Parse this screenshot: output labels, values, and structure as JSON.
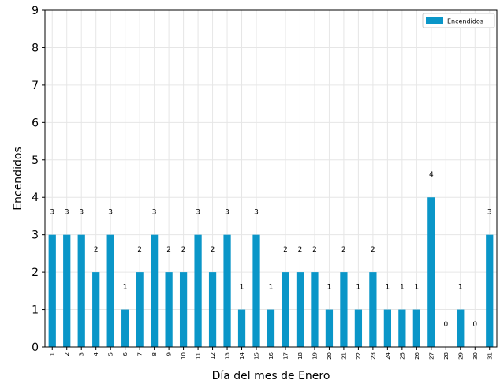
{
  "chart_data": {
    "type": "bar",
    "xlabel": "Día del mes de Enero",
    "ylabel": "Encendidos",
    "ylim": [
      0,
      9
    ],
    "yticks": [
      0,
      1,
      2,
      3,
      4,
      5,
      6,
      7,
      8,
      9
    ],
    "grid": true,
    "legend_position": "top-right",
    "categories": [
      "1",
      "2",
      "3",
      "4",
      "5",
      "6",
      "7",
      "8",
      "9",
      "10",
      "11",
      "12",
      "13",
      "14",
      "15",
      "16",
      "17",
      "18",
      "19",
      "20",
      "21",
      "22",
      "23",
      "24",
      "25",
      "26",
      "27",
      "28",
      "29",
      "30",
      "31"
    ],
    "series": [
      {
        "name": "Encendidos",
        "color": "#0a96c8",
        "values": [
          3,
          3,
          3,
          2,
          3,
          1,
          2,
          3,
          2,
          2,
          3,
          2,
          3,
          1,
          3,
          1,
          2,
          2,
          2,
          1,
          2,
          1,
          2,
          1,
          1,
          1,
          4,
          0,
          1,
          0,
          3
        ]
      }
    ]
  }
}
